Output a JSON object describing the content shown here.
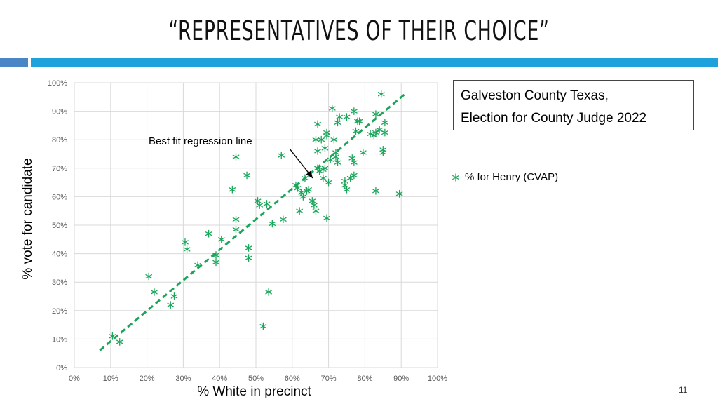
{
  "slide": {
    "title": "“REPRESENTATIVES OF THEIR CHOICE”",
    "page_number": "11",
    "band_colors": [
      "#4a86c5",
      "#1fa1dc"
    ]
  },
  "info_box": {
    "line1": "Galveston County Texas,",
    "line2": "Election for County Judge 2022"
  },
  "chart_data": {
    "type": "scatter",
    "title": "",
    "xlabel": "% White in precinct",
    "ylabel": "% vote for candidate",
    "xlim": [
      0,
      1
    ],
    "ylim": [
      0,
      1
    ],
    "xticks": [
      "0%",
      "10%",
      "20%",
      "30%",
      "40%",
      "50%",
      "60%",
      "70%",
      "80%",
      "90%",
      "100%"
    ],
    "yticks": [
      "0%",
      "10%",
      "20%",
      "30%",
      "40%",
      "50%",
      "60%",
      "70%",
      "80%",
      "90%",
      "100%"
    ],
    "grid": true,
    "legend_position": "right",
    "series": [
      {
        "name": "% for Henry (CVAP)",
        "color": "#1aa65a",
        "marker": "asterisk",
        "points": [
          [
            0.105,
            0.11
          ],
          [
            0.125,
            0.09
          ],
          [
            0.205,
            0.32
          ],
          [
            0.22,
            0.265
          ],
          [
            0.265,
            0.22
          ],
          [
            0.275,
            0.25
          ],
          [
            0.305,
            0.44
          ],
          [
            0.31,
            0.415
          ],
          [
            0.34,
            0.36
          ],
          [
            0.37,
            0.47
          ],
          [
            0.39,
            0.395
          ],
          [
            0.39,
            0.37
          ],
          [
            0.405,
            0.45
          ],
          [
            0.435,
            0.625
          ],
          [
            0.445,
            0.74
          ],
          [
            0.445,
            0.52
          ],
          [
            0.445,
            0.485
          ],
          [
            0.475,
            0.675
          ],
          [
            0.48,
            0.42
          ],
          [
            0.48,
            0.385
          ],
          [
            0.505,
            0.585
          ],
          [
            0.51,
            0.57
          ],
          [
            0.52,
            0.145
          ],
          [
            0.53,
            0.575
          ],
          [
            0.535,
            0.265
          ],
          [
            0.545,
            0.505
          ],
          [
            0.57,
            0.745
          ],
          [
            0.575,
            0.52
          ],
          [
            0.61,
            0.64
          ],
          [
            0.615,
            0.63
          ],
          [
            0.62,
            0.55
          ],
          [
            0.625,
            0.615
          ],
          [
            0.63,
            0.6
          ],
          [
            0.635,
            0.665
          ],
          [
            0.64,
            0.62
          ],
          [
            0.645,
            0.625
          ],
          [
            0.655,
            0.585
          ],
          [
            0.66,
            0.57
          ],
          [
            0.665,
            0.8
          ],
          [
            0.665,
            0.55
          ],
          [
            0.67,
            0.855
          ],
          [
            0.67,
            0.76
          ],
          [
            0.67,
            0.7
          ],
          [
            0.675,
            0.69
          ],
          [
            0.68,
            0.8
          ],
          [
            0.685,
            0.695
          ],
          [
            0.685,
            0.665
          ],
          [
            0.69,
            0.77
          ],
          [
            0.69,
            0.7
          ],
          [
            0.695,
            0.525
          ],
          [
            0.695,
            0.825
          ],
          [
            0.695,
            0.815
          ],
          [
            0.7,
            0.65
          ],
          [
            0.705,
            0.73
          ],
          [
            0.71,
            0.91
          ],
          [
            0.715,
            0.8
          ],
          [
            0.72,
            0.755
          ],
          [
            0.72,
            0.74
          ],
          [
            0.725,
            0.86
          ],
          [
            0.725,
            0.72
          ],
          [
            0.73,
            0.88
          ],
          [
            0.745,
            0.64
          ],
          [
            0.745,
            0.655
          ],
          [
            0.75,
            0.625
          ],
          [
            0.75,
            0.88
          ],
          [
            0.76,
            0.665
          ],
          [
            0.765,
            0.735
          ],
          [
            0.77,
            0.72
          ],
          [
            0.77,
            0.675
          ],
          [
            0.77,
            0.9
          ],
          [
            0.775,
            0.83
          ],
          [
            0.78,
            0.865
          ],
          [
            0.785,
            0.865
          ],
          [
            0.795,
            0.755
          ],
          [
            0.815,
            0.82
          ],
          [
            0.825,
            0.815
          ],
          [
            0.83,
            0.825
          ],
          [
            0.83,
            0.89
          ],
          [
            0.83,
            0.62
          ],
          [
            0.84,
            0.835
          ],
          [
            0.845,
            0.96
          ],
          [
            0.85,
            0.765
          ],
          [
            0.85,
            0.755
          ],
          [
            0.855,
            0.86
          ],
          [
            0.855,
            0.825
          ],
          [
            0.895,
            0.61
          ]
        ]
      }
    ],
    "regression_line": {
      "label": "Best fit regression line",
      "color": "#1aa65a",
      "style": "dashed",
      "from": [
        0.07,
        0.06
      ],
      "to": [
        0.91,
        0.96
      ]
    }
  }
}
